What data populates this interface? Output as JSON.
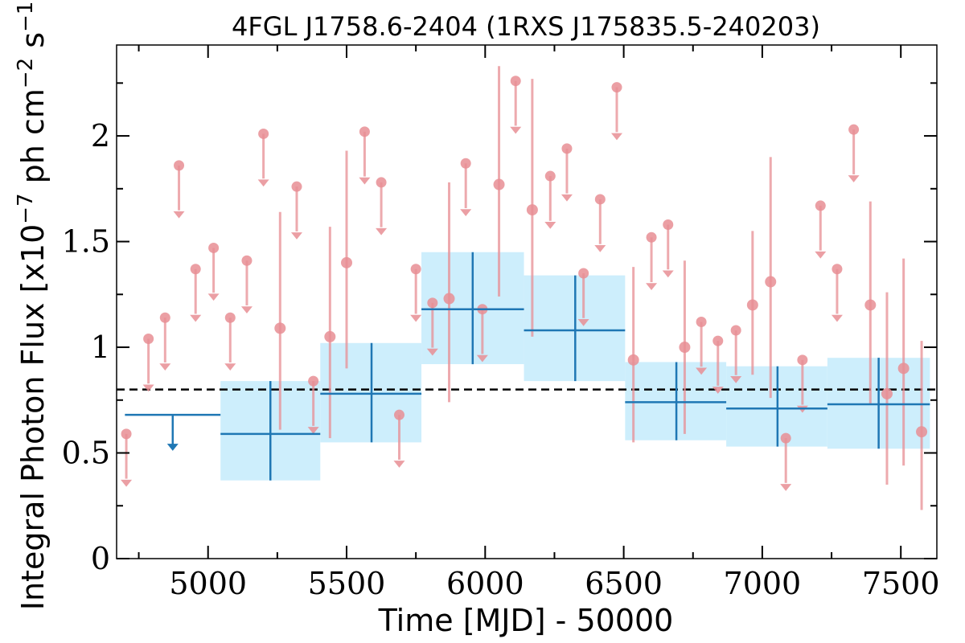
{
  "chart_data": {
    "type": "scatter",
    "title": "4FGL J1758.6-2404 (1RXS J175835.5-240203)",
    "xlabel": "Time [MJD] - 50000",
    "ylabel": "Integral Photon Flux [x10",
    "ylabel_sup1": "−7",
    "ylabel_mid": " ph cm",
    "ylabel_sup2": "−2",
    "ylabel_end": " s",
    "ylabel_sup3": "−1",
    "ylabel_close": "]",
    "xlim": [
      4670,
      7630
    ],
    "ylim": [
      0,
      2.43
    ],
    "xticks": [
      5000,
      5500,
      6000,
      6500,
      7000,
      7500
    ],
    "xtick_labels": [
      "5000",
      "5500",
      "6000",
      "6500",
      "7000",
      "7500"
    ],
    "yticks": [
      0,
      0.5,
      1,
      1.5,
      2
    ],
    "ytick_labels": [
      "0",
      "0.5",
      "1",
      "1.5",
      "2"
    ],
    "grid": false,
    "reference_line": {
      "y": 0.8,
      "style": "dashed",
      "color": "#000000"
    },
    "colors": {
      "long_bins": "#1f77b4",
      "band": "#cdeefc",
      "short_bins": "#e88e94"
    },
    "long_bin_upper_limit": {
      "x_low": 4700,
      "x_high": 5045,
      "y": 0.68
    },
    "long_bins": [
      {
        "x": 5225,
        "x_low": 5045,
        "x_high": 5405,
        "y": 0.59,
        "y_low": 0.37,
        "y_high": 0.84
      },
      {
        "x": 5590,
        "x_low": 5405,
        "x_high": 5770,
        "y": 0.78,
        "y_low": 0.55,
        "y_high": 1.02
      },
      {
        "x": 5955,
        "x_low": 5770,
        "x_high": 6140,
        "y": 1.18,
        "y_low": 0.92,
        "y_high": 1.45
      },
      {
        "x": 6325,
        "x_low": 6140,
        "x_high": 6505,
        "y": 1.08,
        "y_low": 0.84,
        "y_high": 1.34
      },
      {
        "x": 6690,
        "x_low": 6505,
        "x_high": 6870,
        "y": 0.74,
        "y_low": 0.56,
        "y_high": 0.93
      },
      {
        "x": 7055,
        "x_low": 6870,
        "x_high": 7235,
        "y": 0.71,
        "y_low": 0.53,
        "y_high": 0.91
      },
      {
        "x": 7420,
        "x_low": 7235,
        "x_high": 7605,
        "y": 0.73,
        "y_low": 0.52,
        "y_high": 0.95
      }
    ],
    "short_bin_detections": [
      {
        "x": 5260,
        "y": 1.09,
        "y_low": 0.61,
        "y_high": 1.64
      },
      {
        "x": 5440,
        "y": 1.05,
        "y_low": 0.57,
        "y_high": 1.57
      },
      {
        "x": 5500,
        "y": 1.4,
        "y_low": 0.9,
        "y_high": 1.93
      },
      {
        "x": 5870,
        "y": 1.23,
        "y_low": 0.74,
        "y_high": 1.78
      },
      {
        "x": 6050,
        "y": 1.77,
        "y_low": 1.24,
        "y_high": 2.33
      },
      {
        "x": 6170,
        "y": 1.65,
        "y_low": 1.05,
        "y_high": 2.27
      },
      {
        "x": 6535,
        "y": 0.94,
        "y_low": 0.55,
        "y_high": 1.38
      },
      {
        "x": 6720,
        "y": 1.0,
        "y_low": 0.59,
        "y_high": 1.41
      },
      {
        "x": 6965,
        "y": 1.2,
        "y_low": 0.87,
        "y_high": 1.55
      },
      {
        "x": 7030,
        "y": 1.31,
        "y_low": 0.76,
        "y_high": 1.9
      },
      {
        "x": 7390,
        "y": 1.2,
        "y_low": 0.73,
        "y_high": 1.69
      },
      {
        "x": 7450,
        "y": 0.78,
        "y_low": 0.35,
        "y_high": 1.26
      },
      {
        "x": 7510,
        "y": 0.9,
        "y_low": 0.44,
        "y_high": 1.42
      },
      {
        "x": 7575,
        "y": 0.6,
        "y_low": 0.23,
        "y_high": 1.03
      }
    ],
    "short_bin_upper_limits": [
      {
        "x": 4705,
        "y": 0.59
      },
      {
        "x": 4785,
        "y": 1.04
      },
      {
        "x": 4845,
        "y": 1.14
      },
      {
        "x": 4895,
        "y": 1.86
      },
      {
        "x": 4955,
        "y": 1.37
      },
      {
        "x": 5020,
        "y": 1.47
      },
      {
        "x": 5080,
        "y": 1.14
      },
      {
        "x": 5140,
        "y": 1.41
      },
      {
        "x": 5200,
        "y": 2.01
      },
      {
        "x": 5320,
        "y": 1.76
      },
      {
        "x": 5380,
        "y": 0.84
      },
      {
        "x": 5565,
        "y": 2.02
      },
      {
        "x": 5625,
        "y": 1.78
      },
      {
        "x": 5690,
        "y": 0.68
      },
      {
        "x": 5750,
        "y": 1.37
      },
      {
        "x": 5810,
        "y": 1.21
      },
      {
        "x": 5930,
        "y": 1.87
      },
      {
        "x": 5990,
        "y": 1.18
      },
      {
        "x": 6110,
        "y": 2.26
      },
      {
        "x": 6235,
        "y": 1.81
      },
      {
        "x": 6295,
        "y": 1.94
      },
      {
        "x": 6355,
        "y": 1.35
      },
      {
        "x": 6415,
        "y": 1.7
      },
      {
        "x": 6475,
        "y": 2.23
      },
      {
        "x": 6600,
        "y": 1.52
      },
      {
        "x": 6660,
        "y": 1.58
      },
      {
        "x": 6780,
        "y": 1.12
      },
      {
        "x": 6840,
        "y": 1.03
      },
      {
        "x": 6905,
        "y": 1.08
      },
      {
        "x": 7085,
        "y": 0.57
      },
      {
        "x": 7145,
        "y": 0.94
      },
      {
        "x": 7210,
        "y": 1.67
      },
      {
        "x": 7270,
        "y": 1.37
      },
      {
        "x": 7330,
        "y": 2.03
      }
    ]
  }
}
